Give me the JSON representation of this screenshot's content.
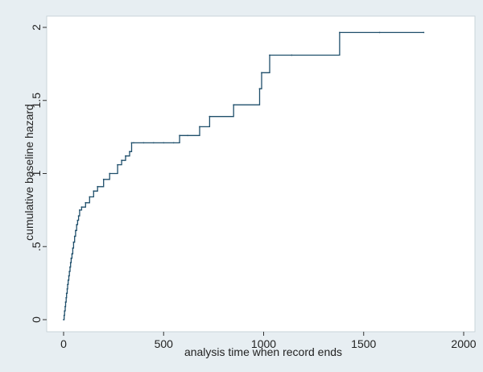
{
  "chart_data": {
    "type": "line",
    "xlabel": "analysis time when record ends",
    "ylabel": "cumulative baseline hazard",
    "xlim": [
      0,
      2000
    ],
    "ylim": [
      0,
      2
    ],
    "x_ticks": [
      0,
      500,
      1000,
      1500,
      2000
    ],
    "x_tick_labels": [
      "0",
      "500",
      "1000",
      "1500",
      "2000"
    ],
    "y_ticks": [
      0,
      0.5,
      1,
      1.5,
      2
    ],
    "y_tick_labels": [
      "0",
      ".5",
      "1",
      "1.5",
      "2"
    ],
    "grid": false,
    "legend": "none",
    "colors": {
      "line": "#1f4f6b",
      "background": "#e7eef2",
      "plot_area": "#ffffff"
    },
    "series": [
      {
        "step": "post",
        "x": [
          0,
          3,
          5,
          8,
          10,
          13,
          15,
          18,
          20,
          23,
          26,
          29,
          32,
          35,
          38,
          42,
          46,
          50,
          55,
          60,
          65,
          70,
          75,
          80,
          90,
          110,
          130,
          150,
          170,
          200,
          230,
          270,
          290,
          310,
          330,
          340,
          350,
          400,
          450,
          500,
          550,
          580,
          620,
          680,
          730,
          850,
          980,
          990,
          1030,
          1140,
          1380,
          1580,
          1800
        ],
        "y": [
          0.0,
          0.03,
          0.06,
          0.09,
          0.12,
          0.15,
          0.18,
          0.21,
          0.24,
          0.27,
          0.3,
          0.33,
          0.36,
          0.39,
          0.42,
          0.45,
          0.49,
          0.53,
          0.57,
          0.61,
          0.65,
          0.68,
          0.71,
          0.75,
          0.77,
          0.8,
          0.84,
          0.88,
          0.91,
          0.96,
          1.0,
          1.06,
          1.09,
          1.12,
          1.15,
          1.21,
          1.21,
          1.21,
          1.21,
          1.21,
          1.21,
          1.26,
          1.26,
          1.32,
          1.39,
          1.47,
          1.58,
          1.69,
          1.81,
          1.81,
          1.965,
          1.965,
          1.965
        ]
      }
    ]
  }
}
